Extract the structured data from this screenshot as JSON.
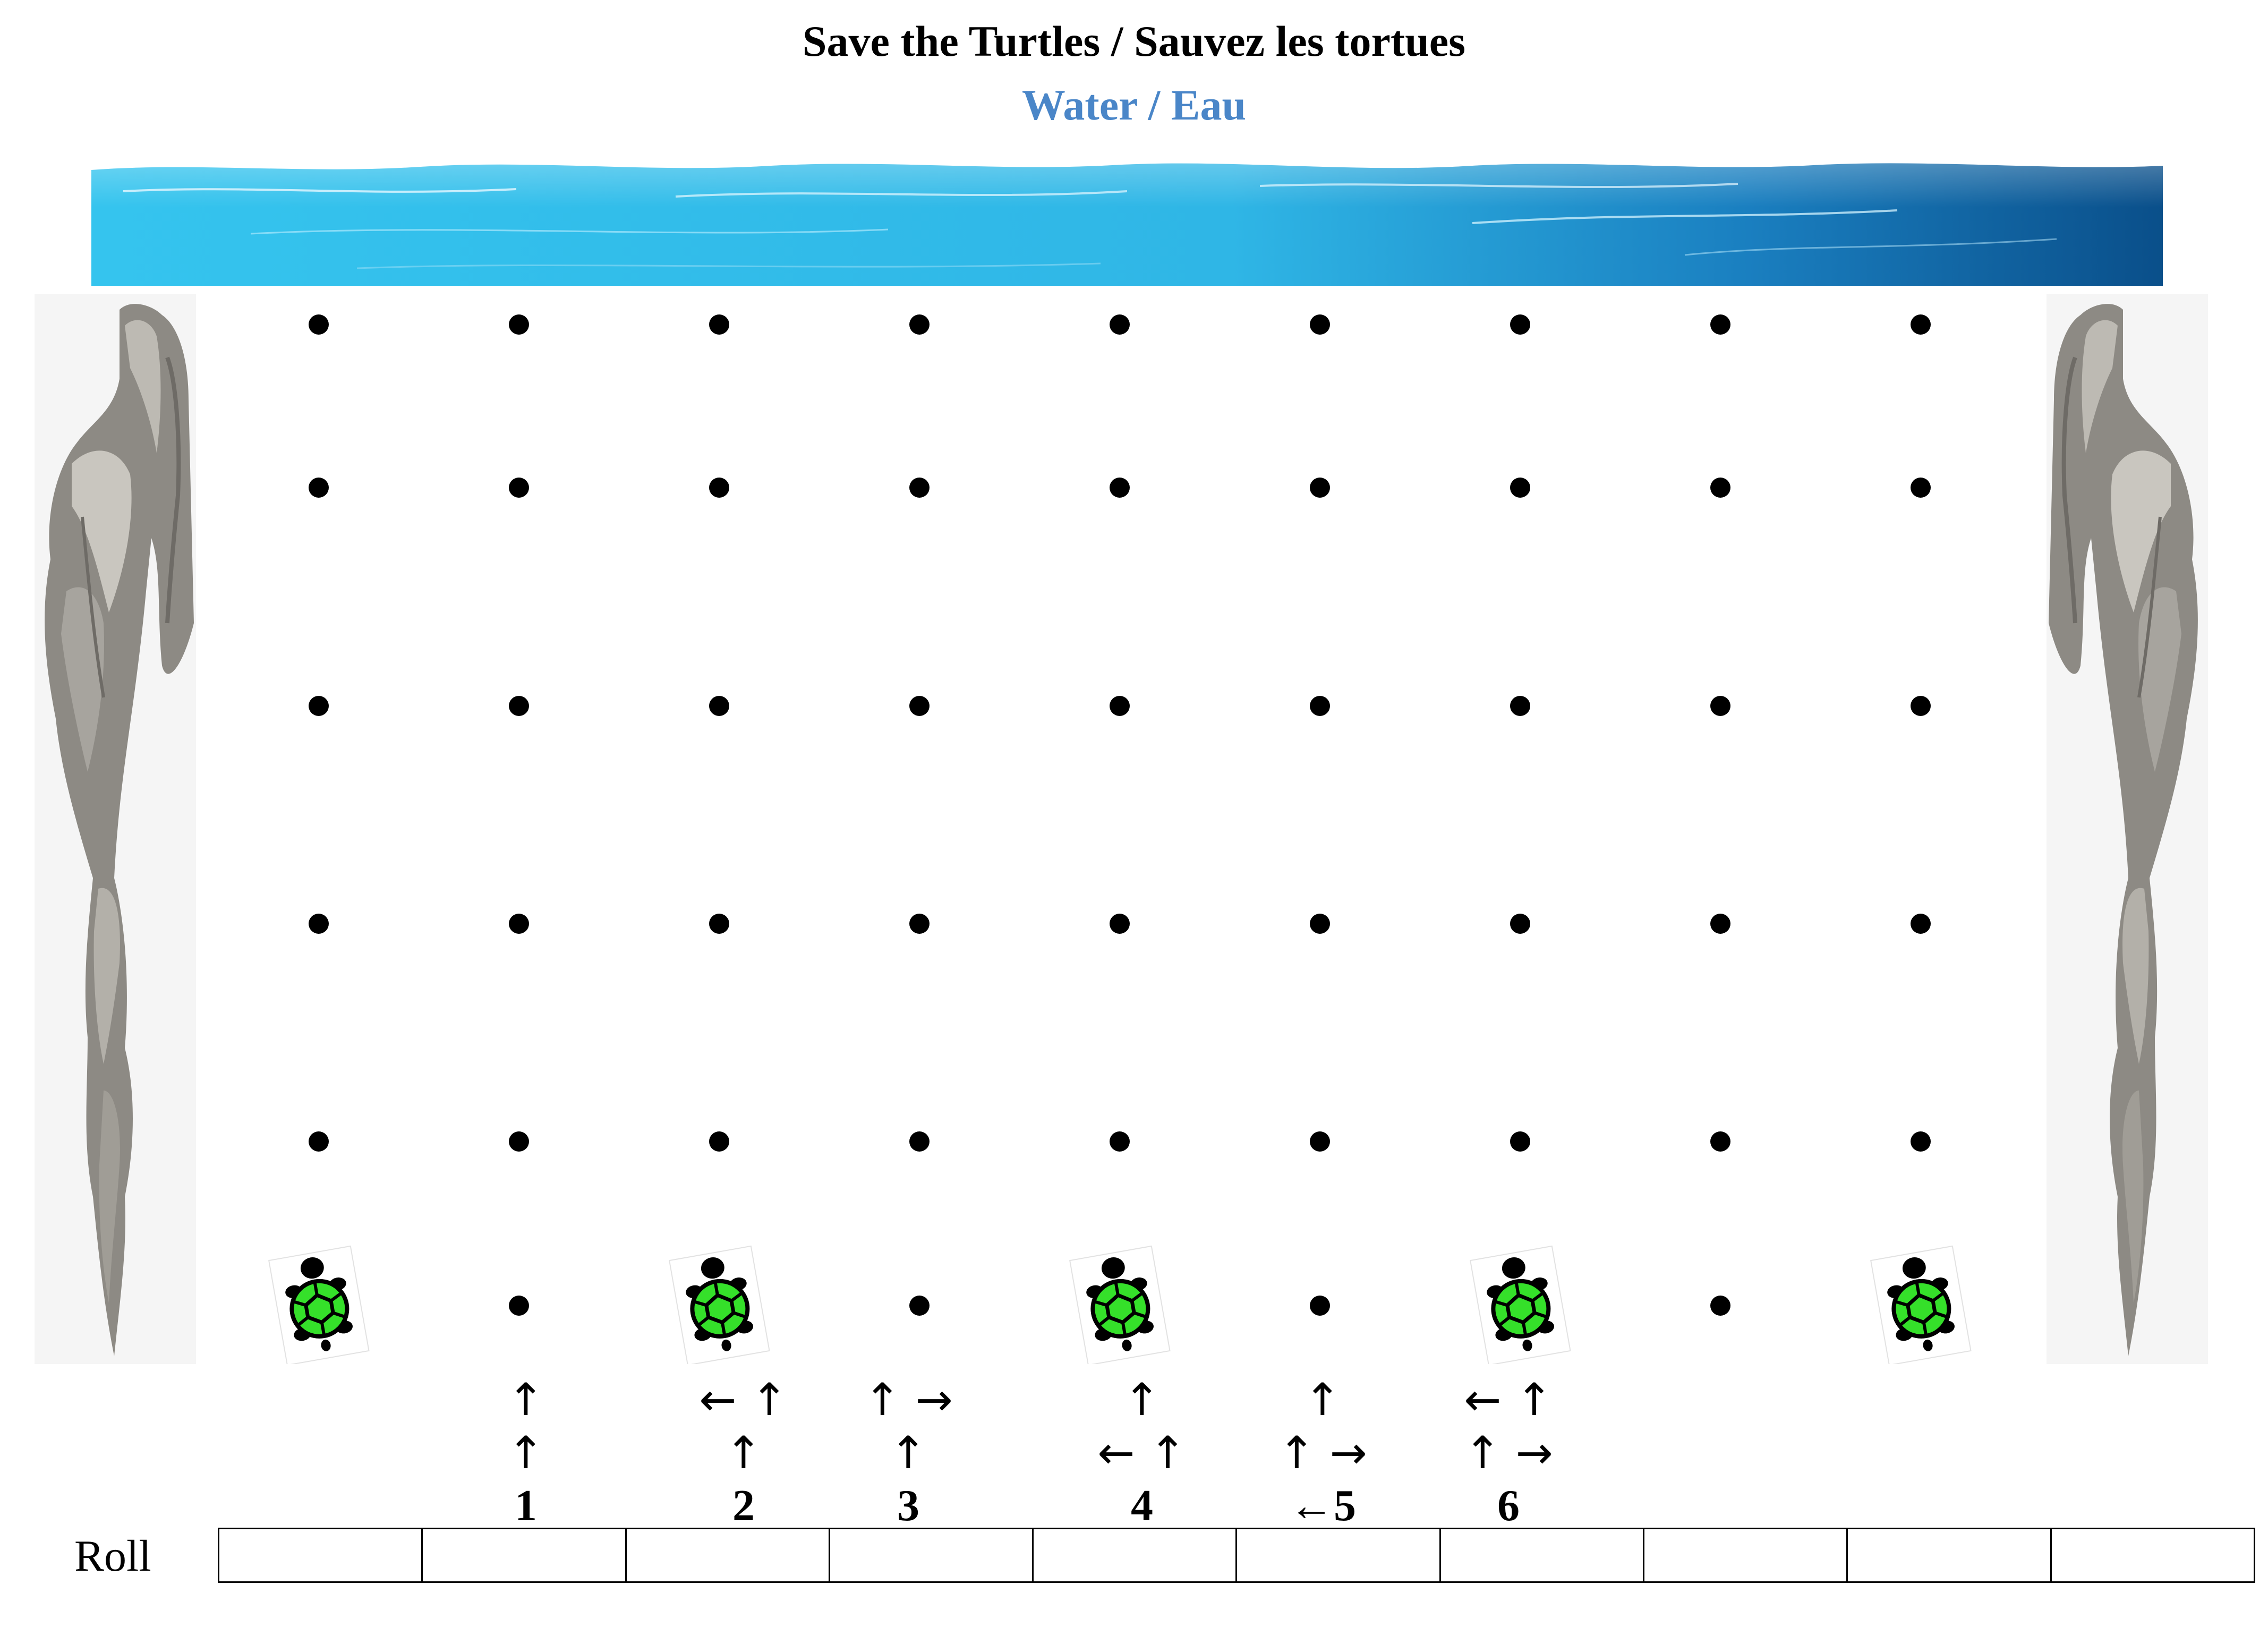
{
  "title": "Save the Turtles / Sauvez les tortues",
  "subtitle": "Water / Eau",
  "colors": {
    "subtitle": "#4a86c8",
    "water_light": "#3cc8f0",
    "water_dark": "#0a4f8a",
    "turtle_shell": "#35e02a",
    "rock": "#8d8a84"
  },
  "icons": {
    "water": "ocean-water-banner",
    "cliff": "rock-cliff-icon",
    "turtle": "turtle-icon",
    "dot": "board-dot"
  },
  "board": {
    "columns": 9,
    "dot_rows": 6,
    "turtle_columns": [
      1,
      3,
      5,
      7,
      9
    ]
  },
  "moves": [
    {
      "number": "1",
      "arrows": [
        "↑",
        "↑"
      ]
    },
    {
      "number": "2",
      "arrows": [
        "← ↑",
        "↑"
      ]
    },
    {
      "number": "3",
      "arrows": [
        "↑ →",
        "↑"
      ]
    },
    {
      "number": "4",
      "arrows": [
        "↑",
        "← ↑"
      ]
    },
    {
      "number": "←5",
      "arrows": [
        "↑",
        "↑ →"
      ]
    },
    {
      "number": "6",
      "arrows": [
        "← ↑",
        "↑ →"
      ]
    }
  ],
  "roll": {
    "label": "Roll",
    "cells": [
      "",
      "",
      "",
      "",
      "",
      "",
      "",
      "",
      "",
      ""
    ]
  }
}
